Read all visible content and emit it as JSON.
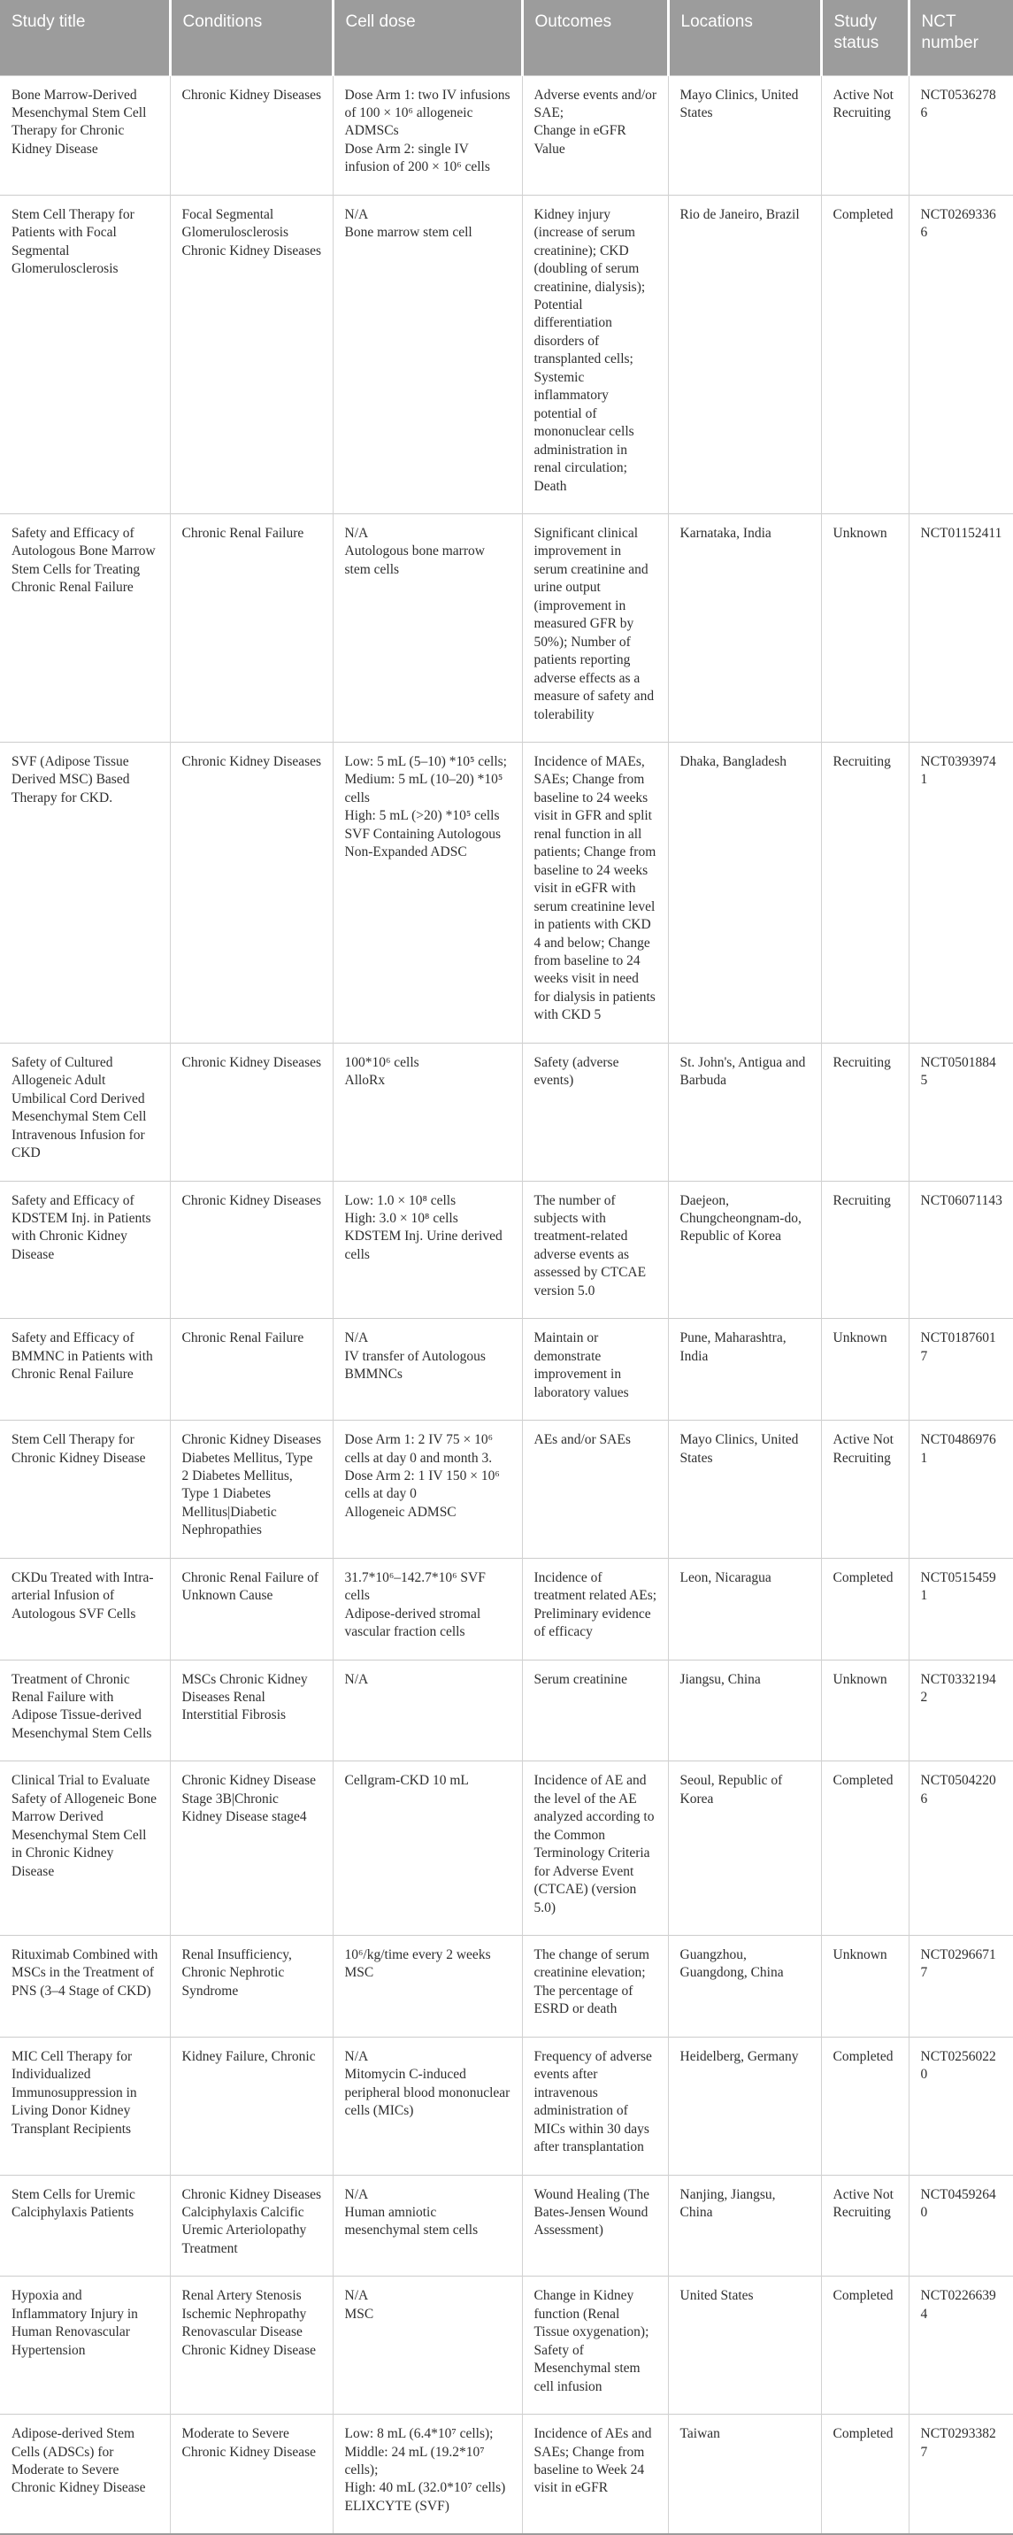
{
  "table": {
    "columns": [
      "Study title",
      "Conditions",
      "Cell dose",
      "Outcomes",
      "Locations",
      "Study status",
      "NCT number"
    ],
    "fields": [
      "title",
      "conditions",
      "dose",
      "outcomes",
      "locations",
      "status",
      "nct"
    ],
    "header_bg_color": "#9c9c9c",
    "header_text_color": "#ffffff",
    "body_text_color": "#2e2e2e",
    "rows": [
      {
        "title": "Bone Marrow-Derived Mesenchymal Stem Cell Therapy for Chronic Kidney Disease",
        "conditions": "Chronic Kidney Diseases",
        "dose": "Dose Arm 1: two IV infusions of 100 × 10⁶ allogeneic ADMSCs\nDose Arm 2: single IV infusion of 200 × 10⁶ cells",
        "outcomes": "Adverse events and/or SAE;\nChange in eGFR Value",
        "locations": "Mayo Clinics, United States",
        "status": "Active Not Recruiting",
        "nct": "NCT05362786"
      },
      {
        "title": "Stem Cell Therapy for Patients with Focal Segmental Glomerulosclerosis",
        "conditions": "Focal Segmental Glomerulosclerosis\nChronic Kidney Diseases",
        "dose": "N/A\nBone marrow stem cell",
        "outcomes": "Kidney injury (increase of serum creatinine); CKD (doubling of serum creatinine, dialysis); Potential differentiation disorders of transplanted cells; Systemic inflammatory potential of mononuclear cells administration in renal circulation; Death",
        "locations": "Rio de Janeiro, Brazil",
        "status": "Completed",
        "nct": "NCT02693366"
      },
      {
        "title": "Safety and Efficacy of Autologous Bone Marrow Stem Cells for Treating Chronic Renal Failure",
        "conditions": "Chronic Renal Failure",
        "dose": "N/A\nAutologous bone marrow stem cells",
        "outcomes": "Significant clinical improvement in serum creatinine and urine output (improvement in measured GFR by 50%); Number of patients reporting adverse effects as a measure of safety and tolerability",
        "locations": "Karnataka, India",
        "status": "Unknown",
        "nct": "NCT01152411"
      },
      {
        "title": "SVF (Adipose Tissue Derived MSC) Based Therapy for CKD.",
        "conditions": "Chronic Kidney Diseases",
        "dose": "Low: 5 mL (5–10) *10⁵ cells;\nMedium: 5 mL (10–20) *10⁵ cells\nHigh: 5 mL (>20) *10⁵ cells\nSVF Containing Autologous Non-Expanded ADSC",
        "outcomes": "Incidence of MAEs, SAEs; Change from baseline to 24 weeks visit in GFR and split renal function in all patients; Change from baseline to 24 weeks visit in eGFR with serum creatinine level in patients with CKD 4 and below; Change from baseline to 24 weeks visit in need for dialysis in patients with CKD 5",
        "locations": "Dhaka, Bangladesh",
        "status": "Recruiting",
        "nct": "NCT03939741"
      },
      {
        "title": "Safety of Cultured Allogeneic Adult Umbilical Cord Derived Mesenchymal Stem Cell Intravenous Infusion for CKD",
        "conditions": "Chronic Kidney Diseases",
        "dose": "100*10⁶ cells\nAlloRx",
        "outcomes": "Safety (adverse events)",
        "locations": "St. John's, Antigua and Barbuda",
        "status": "Recruiting",
        "nct": "NCT05018845"
      },
      {
        "title": "Safety and Efficacy of KDSTEM Inj. in Patients with Chronic Kidney Disease",
        "conditions": "Chronic Kidney Diseases",
        "dose": "Low: 1.0 × 10⁸ cells\nHigh: 3.0 × 10⁸ cells\nKDSTEM Inj. Urine derived cells",
        "outcomes": "The number of subjects with treatment-related adverse events as assessed by CTCAE version 5.0",
        "locations": "Daejeon, Chungcheongnam-do, Republic of Korea",
        "status": "Recruiting",
        "nct": "NCT06071143"
      },
      {
        "title": "Safety and Efficacy of BMMNC in Patients with Chronic Renal Failure",
        "conditions": "Chronic Renal Failure",
        "dose": "N/A\nIV transfer of Autologous BMMNCs",
        "outcomes": "Maintain or demonstrate improvement in laboratory values",
        "locations": "Pune, Maharashtra, India",
        "status": "Unknown",
        "nct": "NCT01876017"
      },
      {
        "title": "Stem Cell Therapy for Chronic Kidney Disease",
        "conditions": "Chronic Kidney Diseases\nDiabetes Mellitus, Type 2 Diabetes Mellitus, Type 1 Diabetes Mellitus|Diabetic Nephropathies",
        "dose": "Dose Arm 1: 2 IV 75 × 10⁶ cells at day 0 and month 3.\nDose Arm 2: 1 IV 150 × 10⁶ cells at day 0\nAllogeneic ADMSC",
        "outcomes": "AEs and/or SAEs",
        "locations": "Mayo Clinics, United States",
        "status": "Active Not Recruiting",
        "nct": "NCT04869761"
      },
      {
        "title": "CKDu Treated with Intra-arterial Infusion of Autologous SVF Cells",
        "conditions": "Chronic Renal Failure of Unknown Cause",
        "dose": "31.7*10⁶–142.7*10⁶ SVF cells\nAdipose-derived stromal vascular fraction cells",
        "outcomes": "Incidence of treatment related AEs; Preliminary evidence of efficacy",
        "locations": "Leon, Nicaragua",
        "status": "Completed",
        "nct": "NCT05154591"
      },
      {
        "title": "Treatment of Chronic Renal Failure with Adipose Tissue-derived Mesenchymal Stem Cells",
        "conditions": "MSCs Chronic Kidney Diseases Renal Interstitial Fibrosis",
        "dose": "N/A",
        "outcomes": "Serum creatinine",
        "locations": "Jiangsu, China",
        "status": "Unknown",
        "nct": "NCT03321942"
      },
      {
        "title": "Clinical Trial to Evaluate Safety of Allogeneic Bone Marrow Derived Mesenchymal Stem Cell in Chronic Kidney Disease",
        "conditions": "Chronic Kidney Disease Stage 3B|Chronic Kidney Disease stage4",
        "dose": "Cellgram-CKD 10 mL",
        "outcomes": "Incidence of AE and the level of the AE analyzed according to the Common Terminology Criteria for Adverse Event (CTCAE) (version 5.0)",
        "locations": "Seoul, Republic of Korea",
        "status": "Completed",
        "nct": "NCT05042206"
      },
      {
        "title": "Rituximab Combined with MSCs in the Treatment of PNS (3–4 Stage of CKD)",
        "conditions": "Renal Insufficiency, Chronic Nephrotic Syndrome",
        "dose": "10⁶/kg/time every 2 weeks\nMSC",
        "outcomes": "The change of serum creatinine elevation; The percentage of ESRD or death",
        "locations": "Guangzhou, Guangdong, China",
        "status": "Unknown",
        "nct": "NCT02966717"
      },
      {
        "title": "MIC Cell Therapy for Individualized Immunosuppression in Living Donor Kidney Transplant Recipients",
        "conditions": "Kidney Failure, Chronic",
        "dose": "N/A\nMitomycin C-induced peripheral blood mononuclear cells (MICs)",
        "outcomes": "Frequency of adverse events after intravenous administration of MICs within 30 days after transplantation",
        "locations": "Heidelberg, Germany",
        "status": "Completed",
        "nct": "NCT02560220"
      },
      {
        "title": "Stem Cells for Uremic Calciphylaxis Patients",
        "conditions": "Chronic Kidney Diseases Calciphylaxis Calcific Uremic Arteriolopathy Treatment",
        "dose": "N/A\nHuman amniotic mesenchymal stem cells",
        "outcomes": "Wound Healing (The Bates-Jensen Wound Assessment)",
        "locations": "Nanjing, Jiangsu, China",
        "status": "Active Not Recruiting",
        "nct": "NCT04592640"
      },
      {
        "title": "Hypoxia and Inflammatory Injury in Human Renovascular Hypertension",
        "conditions": "Renal Artery Stenosis\nIschemic Nephropathy\nRenovascular Disease\nChronic Kidney Disease",
        "dose": "N/A\nMSC",
        "outcomes": "Change in Kidney function (Renal Tissue oxygenation); Safety of Mesenchymal stem cell infusion",
        "locations": "United States",
        "status": "Completed",
        "nct": "NCT02266394"
      },
      {
        "title": "Adipose-derived Stem Cells (ADSCs) for Moderate to Severe Chronic Kidney Disease",
        "conditions": "Moderate to Severe Chronic Kidney Disease",
        "dose": "Low: 8 mL (6.4*10⁷ cells);\nMiddle: 24 mL (19.2*10⁷ cells);\nHigh: 40 mL (32.0*10⁷ cells)\nELIXCYTE (SVF)",
        "outcomes": "Incidence of AEs and SAEs; Change from baseline to Week 24 visit in eGFR",
        "locations": "Taiwan",
        "status": "Completed",
        "nct": "NCT02933827"
      }
    ]
  }
}
